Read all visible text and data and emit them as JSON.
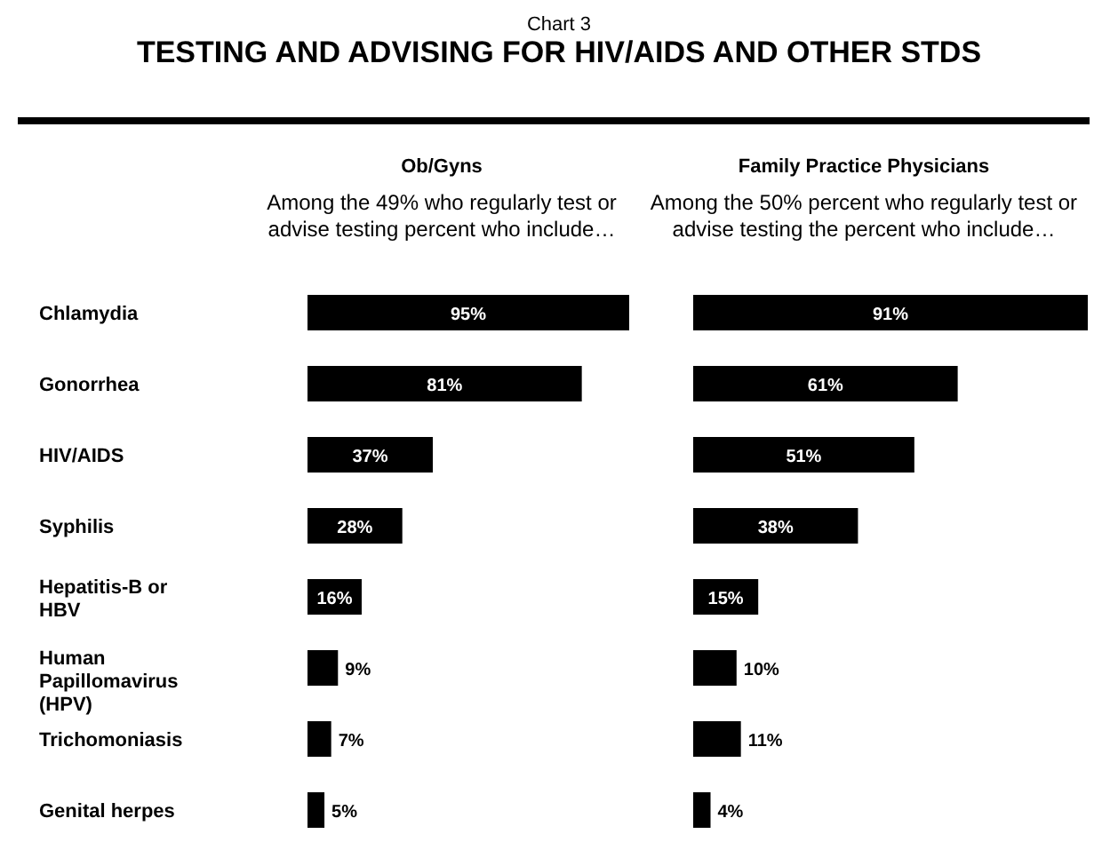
{
  "chart_data": [
    {
      "type": "bar",
      "orientation": "horizontal",
      "title": "Ob/Gyns",
      "subtitle": "Among the 49% who regularly test or advise testing percent who include…",
      "annotations": [
        "Chart 3",
        "TESTING AND ADVISING FOR HIV/AIDS AND OTHER STDS"
      ],
      "categories": [
        "Chlamydia",
        "Gonorrhea",
        "HIV/AIDS",
        "Syphilis",
        "Hepatitis-B or HBV",
        "Human Papillomavirus (HPV)",
        "Trichomoniasis",
        "Genital herpes"
      ],
      "values": [
        95,
        81,
        37,
        28,
        16,
        9,
        7,
        5
      ],
      "value_labels": [
        "95%",
        "81%",
        "37%",
        "28%",
        "16%",
        "9%",
        "7%",
        "5%"
      ],
      "color": "#000000"
    },
    {
      "type": "bar",
      "orientation": "horizontal",
      "title": "Family Practice Physicians",
      "subtitle": "Among the 50% percent who regularly test or advise testing the percent who include…",
      "categories": [
        null,
        null,
        null,
        null,
        null,
        null,
        null,
        null
      ],
      "values": [
        91,
        61,
        51,
        38,
        15,
        10,
        11,
        4
      ],
      "value_labels": [
        "91%",
        "61%",
        "51%",
        "38%",
        "15%",
        "10%",
        "11%",
        "4%"
      ],
      "color": "#000000"
    }
  ]
}
